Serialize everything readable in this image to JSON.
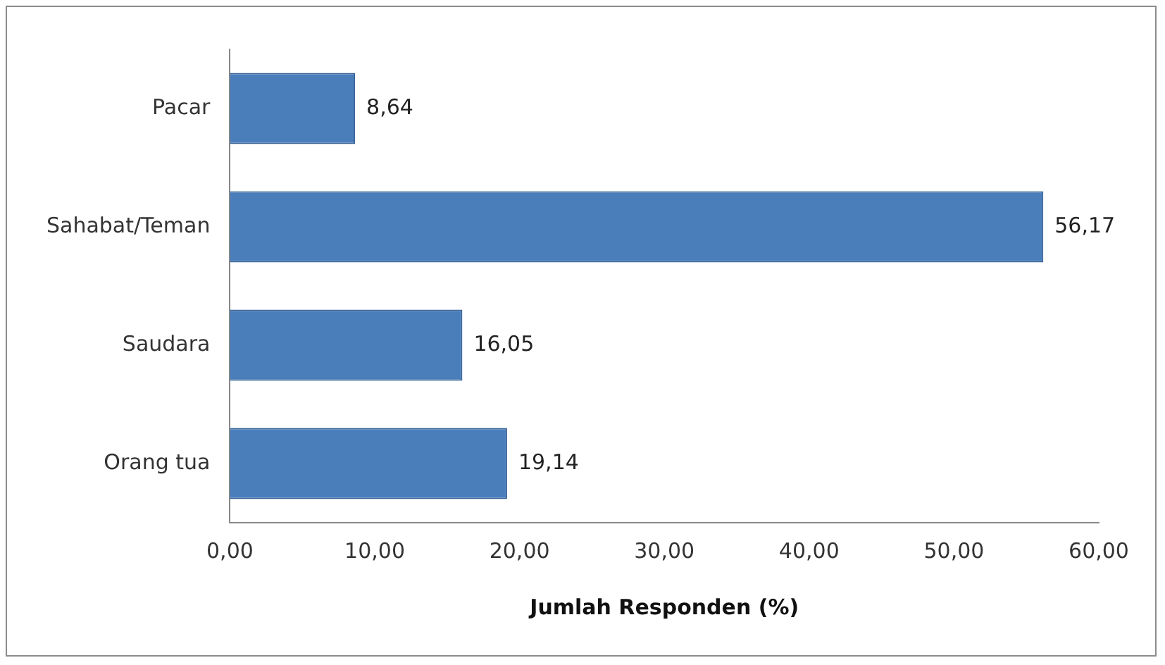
{
  "chart_data": {
    "type": "bar",
    "orientation": "horizontal",
    "categories": [
      "Pacar",
      "Sahabat/Teman",
      "Saudara",
      "Orang tua"
    ],
    "values": [
      8.64,
      56.17,
      16.05,
      19.14
    ],
    "color": "#4a7ebb",
    "value_labels": [
      "8,64",
      "56,17",
      "16,05",
      "19,14"
    ],
    "xlabel": "Jumlah Responden (%)",
    "xlim": [
      0,
      60
    ],
    "xticks": [
      {
        "value": 0,
        "label": "0,00"
      },
      {
        "value": 10,
        "label": "10,00"
      },
      {
        "value": 20,
        "label": "20,00"
      },
      {
        "value": 30,
        "label": "30,00"
      },
      {
        "value": 40,
        "label": "40,00"
      },
      {
        "value": 50,
        "label": "50,00"
      },
      {
        "value": 60,
        "label": "60,00"
      }
    ],
    "grid": false,
    "legend": false
  }
}
